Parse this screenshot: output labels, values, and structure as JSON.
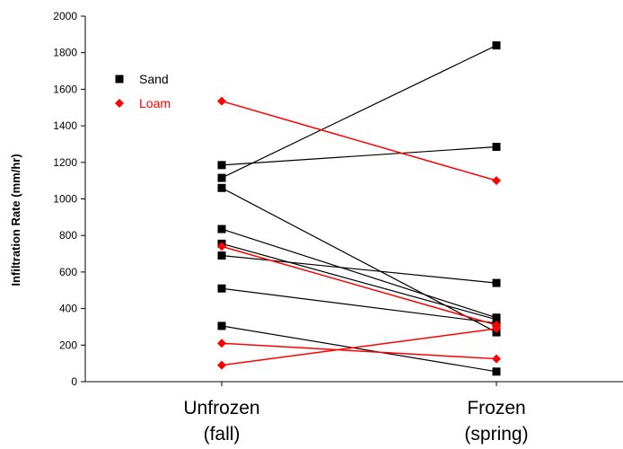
{
  "chart_data": {
    "type": "line",
    "title": "",
    "xlabel": "",
    "ylabel": "Infiltration Rate (mm/hr)",
    "categories": [
      "Unfrozen\n(fall)",
      "Frozen\n(spring)"
    ],
    "ylim": [
      0,
      2000
    ],
    "yticks": [
      0,
      200,
      400,
      600,
      800,
      1000,
      1200,
      1400,
      1600,
      1800,
      2000
    ],
    "grid": false,
    "legend_position": "top-left",
    "legend": [
      {
        "label": "Sand",
        "color": "#000000",
        "marker": "square"
      },
      {
        "label": "Loam",
        "color": "#ff0000",
        "marker": "diamond"
      }
    ],
    "series": [
      {
        "group": "Sand",
        "values": [
          1185,
          1285
        ]
      },
      {
        "group": "Sand",
        "values": [
          1115,
          1840
        ]
      },
      {
        "group": "Sand",
        "values": [
          1060,
          270
        ]
      },
      {
        "group": "Sand",
        "values": [
          835,
          350
        ]
      },
      {
        "group": "Sand",
        "values": [
          755,
          340
        ]
      },
      {
        "group": "Sand",
        "values": [
          690,
          540
        ]
      },
      {
        "group": "Sand",
        "values": [
          510,
          320
        ]
      },
      {
        "group": "Sand",
        "values": [
          305,
          55
        ]
      },
      {
        "group": "Loam",
        "values": [
          1535,
          1100
        ]
      },
      {
        "group": "Loam",
        "values": [
          740,
          310
        ]
      },
      {
        "group": "Loam",
        "values": [
          210,
          125
        ]
      },
      {
        "group": "Loam",
        "values": [
          90,
          290
        ]
      }
    ]
  }
}
